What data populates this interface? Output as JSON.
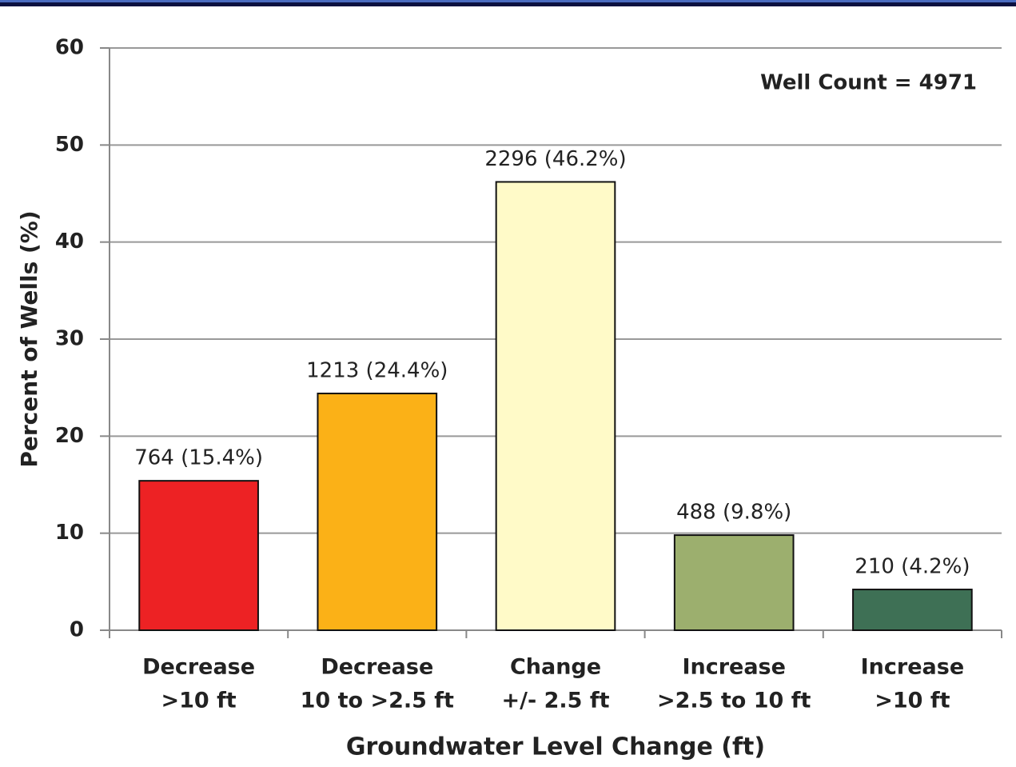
{
  "chart_data": {
    "type": "bar",
    "annotation": "Well Count = 4971",
    "x_label": "Groundwater Level Change (ft)",
    "y_label": "Percent of Wells (%)",
    "categories": [
      [
        "Decrease",
        ">10 ft"
      ],
      [
        "Decrease",
        "10 to >2.5 ft"
      ],
      [
        "Change",
        "+/- 2.5 ft"
      ],
      [
        "Increase",
        ">2.5 to 10 ft"
      ],
      [
        "Increase",
        ">10 ft"
      ]
    ],
    "values": [
      15.4,
      24.4,
      46.2,
      9.8,
      4.2
    ],
    "value_labels": [
      "764 (15.4%)",
      "1213 (24.4%)",
      "2296 (46.2%)",
      "488 (9.8%)",
      "210 (4.2%)"
    ],
    "colors": [
      "#ed2224",
      "#fbb117",
      "#fffac8",
      "#9caf6e",
      "#3e7055"
    ],
    "ylim": [
      0,
      60
    ],
    "yticks": [
      0,
      10,
      20,
      30,
      40,
      50,
      60
    ],
    "grid": true
  }
}
